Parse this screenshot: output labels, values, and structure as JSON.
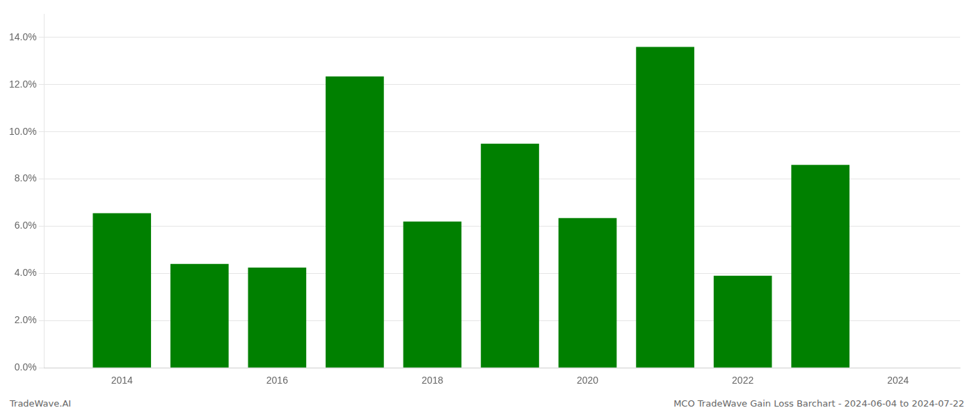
{
  "chart_data": {
    "type": "bar",
    "x": [
      2014,
      2015,
      2016,
      2017,
      2018,
      2019,
      2020,
      2021,
      2022,
      2023
    ],
    "values": [
      0.0655,
      0.044,
      0.0425,
      0.1235,
      0.062,
      0.095,
      0.0635,
      0.136,
      0.039,
      0.086
    ],
    "color": "#008000",
    "xlim": [
      2013.0,
      2024.8
    ],
    "xticks": [
      2014,
      2016,
      2018,
      2020,
      2022,
      2024
    ],
    "ylim": [
      0,
      0.15
    ],
    "yticks": [
      {
        "value": 0.0,
        "label": "0.0%"
      },
      {
        "value": 0.02,
        "label": "2.0%"
      },
      {
        "value": 0.04,
        "label": "4.0%"
      },
      {
        "value": 0.06,
        "label": "6.0%"
      },
      {
        "value": 0.08,
        "label": "8.0%"
      },
      {
        "value": 0.1,
        "label": "10.0%"
      },
      {
        "value": 0.12,
        "label": "12.0%"
      },
      {
        "value": 0.14,
        "label": "14.0%"
      }
    ],
    "grid": true,
    "annotations": [
      "TradeWave.AI",
      "MCO TradeWave Gain Loss Barchart - 2024-06-04 to 2024-07-22"
    ]
  }
}
